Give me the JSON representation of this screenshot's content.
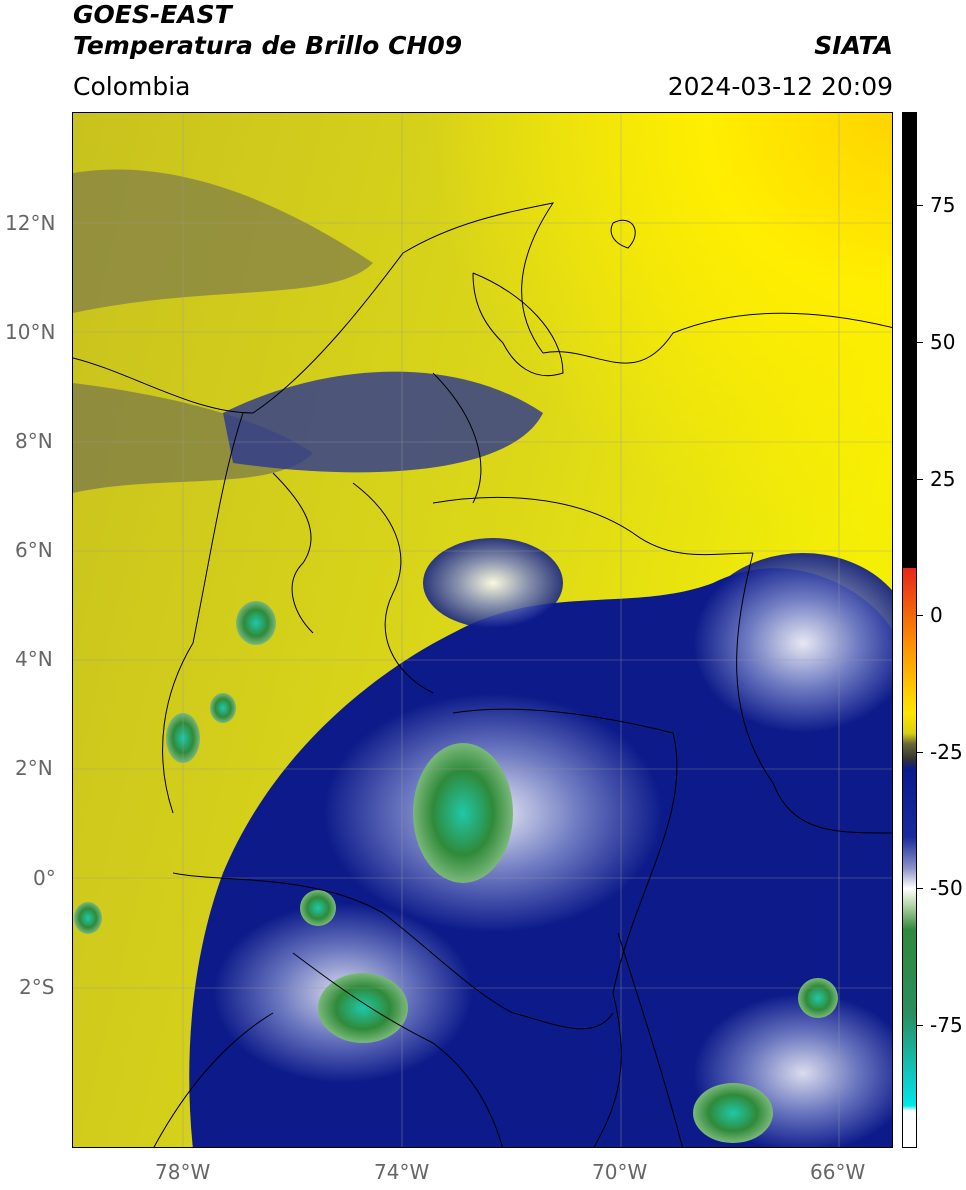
{
  "header": {
    "title_line1": "GOES-EAST",
    "title_line2": "Temperatura de Brillo CH09",
    "source": "SIATA",
    "region": "Colombia",
    "datetime": "2024-03-12 20:09"
  },
  "map": {
    "lat_labels": [
      "12°N",
      "10°N",
      "8°N",
      "6°N",
      "4°N",
      "2°N",
      "0°",
      "2°S"
    ],
    "lon_labels": [
      "78°W",
      "74°W",
      "70°W",
      "66°W"
    ]
  },
  "colorbar": {
    "labels": [
      "75",
      "50",
      "25",
      "0",
      "-25",
      "-50",
      "-75"
    ],
    "colors": {
      "black": "#000000",
      "red": "#e8261a",
      "orange": "#ff9900",
      "yellow": "#ffff00",
      "olive": "#b8b020",
      "gray": "#555555",
      "navy": "#0b1a8c",
      "white": "#ffffff",
      "green": "#2f8a3a",
      "cyan": "#00e0e0"
    }
  }
}
